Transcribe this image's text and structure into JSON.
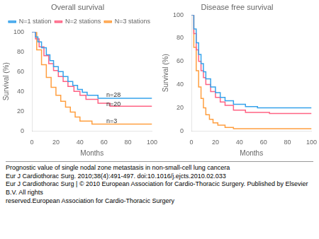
{
  "chart_data": [
    {
      "type": "line",
      "title": "Overall survival",
      "xlabel": "Months",
      "ylabel": "Survival (%)",
      "xlim": [
        0,
        100
      ],
      "ylim": [
        0,
        100
      ],
      "xticks": [
        0,
        20,
        40,
        60,
        80,
        100
      ],
      "yticks": [
        0,
        20,
        40,
        60,
        80,
        100
      ],
      "grid": false,
      "legend": "upper right",
      "line_style": "steps-post",
      "series": [
        {
          "name": "N=1 station",
          "x": [
            0,
            3,
            5,
            8,
            12,
            15,
            18,
            22,
            26,
            30,
            34,
            38,
            42,
            46,
            55,
            65,
            100
          ],
          "values": [
            100,
            95,
            90,
            84,
            77,
            71,
            65,
            60,
            55,
            50,
            46,
            42,
            39,
            36,
            33,
            33,
            33
          ]
        },
        {
          "name": "N=2 stations",
          "x": [
            0,
            3,
            6,
            10,
            14,
            18,
            22,
            26,
            30,
            35,
            40,
            45,
            55,
            65,
            100
          ],
          "values": [
            100,
            93,
            85,
            76,
            68,
            61,
            55,
            50,
            45,
            40,
            36,
            32,
            28,
            25,
            25
          ]
        },
        {
          "name": "N=3 stations",
          "x": [
            0,
            4,
            8,
            12,
            16,
            20,
            24,
            28,
            32,
            36,
            40,
            50,
            100
          ],
          "values": [
            100,
            82,
            67,
            54,
            44,
            36,
            30,
            24,
            19,
            14,
            10,
            7,
            7
          ]
        }
      ],
      "annotations": [
        {
          "text": "n=28",
          "x": 62,
          "y": 36
        },
        {
          "text": "n=20",
          "x": 62,
          "y": 27
        },
        {
          "text": "n=3",
          "x": 62,
          "y": 10
        }
      ]
    },
    {
      "type": "line",
      "title": "Disease free survival",
      "xlabel": "Months",
      "ylabel": "Survival (%)",
      "xlim": [
        0,
        100
      ],
      "ylim": [
        0,
        100
      ],
      "xticks": [
        0,
        20,
        40,
        60,
        80,
        100
      ],
      "yticks": [
        0,
        20,
        40,
        60,
        80,
        100
      ],
      "grid": false,
      "legend": false,
      "line_style": "steps-post",
      "series": [
        {
          "name": "N=1 station",
          "x": [
            0,
            2,
            4,
            6,
            8,
            10,
            12,
            16,
            20,
            24,
            28,
            35,
            45,
            55,
            65,
            100
          ],
          "values": [
            100,
            88,
            76,
            66,
            58,
            51,
            45,
            38,
            33,
            29,
            26,
            23,
            21,
            20,
            20,
            20
          ]
        },
        {
          "name": "N=2 stations",
          "x": [
            0,
            2,
            4,
            6,
            8,
            10,
            12,
            16,
            20,
            24,
            28,
            35,
            45,
            65,
            100
          ],
          "values": [
            100,
            84,
            70,
            60,
            52,
            46,
            40,
            34,
            29,
            25,
            22,
            18,
            16,
            15,
            15
          ]
        },
        {
          "name": "N=3 stations",
          "x": [
            0,
            2,
            4,
            6,
            8,
            10,
            12,
            15,
            18,
            22,
            28,
            35,
            100
          ],
          "values": [
            100,
            72,
            52,
            38,
            28,
            20,
            14,
            10,
            7,
            5,
            3,
            2,
            2
          ]
        }
      ]
    }
  ],
  "caption": [
    "Prognostic value of single nodal zone metastasis in non-small-cell lung cancera",
    "Eur J Cardiothorac Surg. 2010;38(4):491-497. doi:10.1016/j.ejcts.2010.02.033",
    "Eur J Cardiothorac Surg | © 2010 European Association for Cardio-Thoracic Surgery. Published by Elsevier B.V. All rights",
    "reserved.European Association for Cardio-Thoracic Surgery"
  ]
}
